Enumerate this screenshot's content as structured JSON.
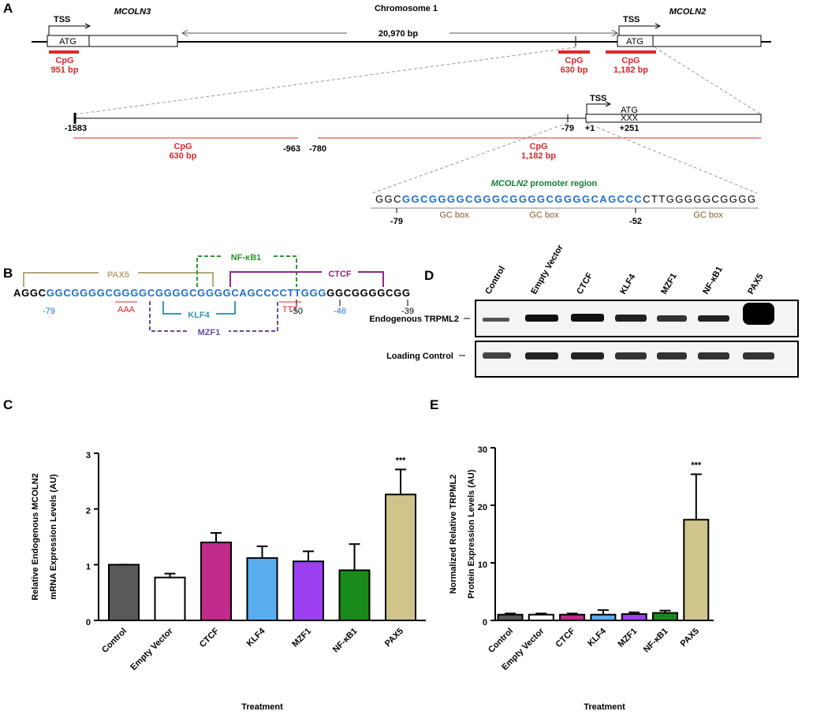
{
  "panel_a": {
    "label": "A",
    "chromosome": "Chromosome 1",
    "gene_left": "MCOLN3",
    "gene_right": "MCOLN2",
    "tss": "TSS",
    "atg": "ATG",
    "distance": "20,970 bp",
    "cpg_label": "CpG",
    "cpg_sizes": [
      "951 bp",
      "630 bp",
      "1,182 bp"
    ],
    "zoom_positions": [
      "-1583",
      "-963",
      "-780",
      "-79",
      "+1",
      "+251"
    ],
    "zoom_codon": "XXX",
    "promoter_gene": "MCOLN2",
    "promoter_title": "promoter region",
    "promoter_sequence": [
      "GGC",
      "GGCGGGGCGGGCGGGGCGGGGCAGCCC",
      "CTTGGGGGCGGGG"
    ],
    "promoter_positions": [
      "-79",
      "-52"
    ],
    "gc_box": "GC box"
  },
  "panel_b": {
    "label": "B",
    "sequence": [
      "AGGC",
      "GGCGGGGCGGGGCGGGGCGGGGCAGCCCCTTGGG",
      "GGCGGGGCGG"
    ],
    "factors": [
      "PAX5",
      "NF-κB1",
      "CTCF",
      "KLF4",
      "MZF1"
    ],
    "mutations": [
      "AAA",
      "TTT"
    ],
    "positions": [
      "-79",
      "-50",
      "-46",
      "-39"
    ]
  },
  "panel_d": {
    "label": "D",
    "lanes": [
      "Control",
      "Empty Vector",
      "CTCF",
      "KLF4",
      "MZF1",
      "NF-κB1",
      "PAX5"
    ],
    "rows": [
      "Endogenous TRPML2",
      "Loading Control"
    ]
  },
  "chart_data": [
    {
      "type": "bar",
      "panel": "C",
      "ylabel": [
        "Relative Endogenous MCOLN2",
        "mRNA Expression Levels (AU)"
      ],
      "xlabel": "Treatment",
      "categories": [
        "Control",
        "Empty Vector",
        "CTCF",
        "KLF4",
        "MZF1",
        "NF-κB1",
        "PAX5"
      ],
      "values": [
        1.0,
        0.77,
        1.4,
        1.12,
        1.06,
        0.9,
        2.26
      ],
      "errors": [
        0,
        0.07,
        0.17,
        0.21,
        0.18,
        0.47,
        0.45
      ],
      "colors": [
        "#595959",
        "#ffffff",
        "#c1298a",
        "#5aaef0",
        "#9b3ff0",
        "#1a8a1a",
        "#cfc48a"
      ],
      "ylim": [
        0,
        3
      ],
      "yticks": [
        0,
        1,
        2,
        3
      ],
      "annotation": "***"
    },
    {
      "type": "bar",
      "panel": "E",
      "ylabel": [
        "Normalized Relative TRPML2",
        "Protein Expression Levels (AU)"
      ],
      "xlabel": "Treatment",
      "categories": [
        "Control",
        "Empty Vector",
        "CTCF",
        "KLF4",
        "MZF1",
        "NF-κB1",
        "PAX5"
      ],
      "values": [
        1.0,
        1.0,
        1.0,
        1.0,
        1.1,
        1.3,
        17.5
      ],
      "errors": [
        0.2,
        0.2,
        0.2,
        0.8,
        0.3,
        0.4,
        7.9
      ],
      "colors": [
        "#595959",
        "#ffffff",
        "#c1298a",
        "#5aaef0",
        "#9b3ff0",
        "#1a8a1a",
        "#cfc48a"
      ],
      "ylim": [
        0,
        30
      ],
      "yticks": [
        0,
        10,
        20,
        30
      ],
      "annotation": "***"
    }
  ]
}
